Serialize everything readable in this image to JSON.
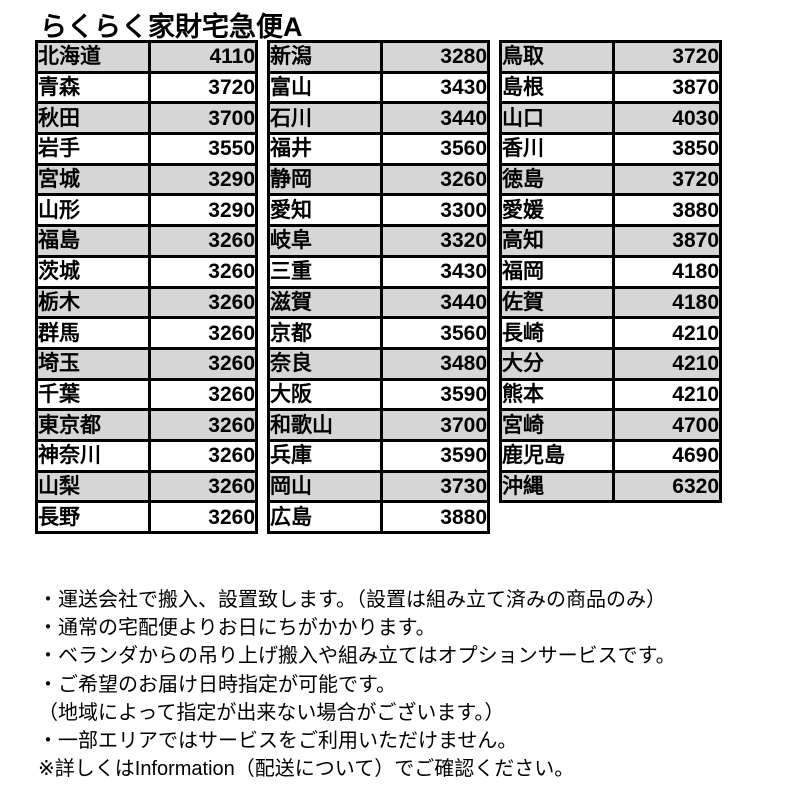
{
  "title": "らくらく家財宅急便A",
  "colors": {
    "background": "#ffffff",
    "border": "#000000",
    "row_shade": "#d6d6d6",
    "text": "#000000"
  },
  "table": {
    "columns": [
      {
        "rows": [
          {
            "prefecture": "北海道",
            "price": "4110"
          },
          {
            "prefecture": "青森",
            "price": "3720"
          },
          {
            "prefecture": "秋田",
            "price": "3700"
          },
          {
            "prefecture": "岩手",
            "price": "3550"
          },
          {
            "prefecture": "宮城",
            "price": "3290"
          },
          {
            "prefecture": "山形",
            "price": "3290"
          },
          {
            "prefecture": "福島",
            "price": "3260"
          },
          {
            "prefecture": "茨城",
            "price": "3260"
          },
          {
            "prefecture": "栃木",
            "price": "3260"
          },
          {
            "prefecture": "群馬",
            "price": "3260"
          },
          {
            "prefecture": "埼玉",
            "price": "3260"
          },
          {
            "prefecture": "千葉",
            "price": "3260"
          },
          {
            "prefecture": "東京都",
            "price": "3260"
          },
          {
            "prefecture": "神奈川",
            "price": "3260"
          },
          {
            "prefecture": "山梨",
            "price": "3260"
          },
          {
            "prefecture": "長野",
            "price": "3260"
          }
        ]
      },
      {
        "rows": [
          {
            "prefecture": "新潟",
            "price": "3280"
          },
          {
            "prefecture": "富山",
            "price": "3430"
          },
          {
            "prefecture": "石川",
            "price": "3440"
          },
          {
            "prefecture": "福井",
            "price": "3560"
          },
          {
            "prefecture": "静岡",
            "price": "3260"
          },
          {
            "prefecture": "愛知",
            "price": "3300"
          },
          {
            "prefecture": "岐阜",
            "price": "3320"
          },
          {
            "prefecture": "三重",
            "price": "3430"
          },
          {
            "prefecture": "滋賀",
            "price": "3440"
          },
          {
            "prefecture": "京都",
            "price": "3560"
          },
          {
            "prefecture": "奈良",
            "price": "3480"
          },
          {
            "prefecture": "大阪",
            "price": "3590"
          },
          {
            "prefecture": "和歌山",
            "price": "3700"
          },
          {
            "prefecture": "兵庫",
            "price": "3590"
          },
          {
            "prefecture": "岡山",
            "price": "3730"
          },
          {
            "prefecture": "広島",
            "price": "3880"
          }
        ]
      },
      {
        "rows": [
          {
            "prefecture": "鳥取",
            "price": "3720"
          },
          {
            "prefecture": "島根",
            "price": "3870"
          },
          {
            "prefecture": "山口",
            "price": "4030"
          },
          {
            "prefecture": "香川",
            "price": "3850"
          },
          {
            "prefecture": "徳島",
            "price": "3720"
          },
          {
            "prefecture": "愛媛",
            "price": "3880"
          },
          {
            "prefecture": "高知",
            "price": "3870"
          },
          {
            "prefecture": "福岡",
            "price": "4180"
          },
          {
            "prefecture": "佐賀",
            "price": "4180"
          },
          {
            "prefecture": "長崎",
            "price": "4210"
          },
          {
            "prefecture": "大分",
            "price": "4210"
          },
          {
            "prefecture": "熊本",
            "price": "4210"
          },
          {
            "prefecture": "宮崎",
            "price": "4700"
          },
          {
            "prefecture": "鹿児島",
            "price": "4690"
          },
          {
            "prefecture": "沖縄",
            "price": "6320"
          }
        ]
      }
    ]
  },
  "notes": [
    "・運送会社で搬入、設置致します。（設置は組み立て済みの商品のみ）",
    "・通常の宅配便よりお日にちがかかります。",
    "・ベランダからの吊り上げ搬入や組み立てはオプションサービスです。",
    "・ご希望のお届け日時指定が可能です。",
    "（地域によって指定が出来ない場合がございます。）",
    "・一部エリアではサービスをご利用いただけません。",
    "※詳しくはInformation（配送について）でご確認ください。"
  ]
}
